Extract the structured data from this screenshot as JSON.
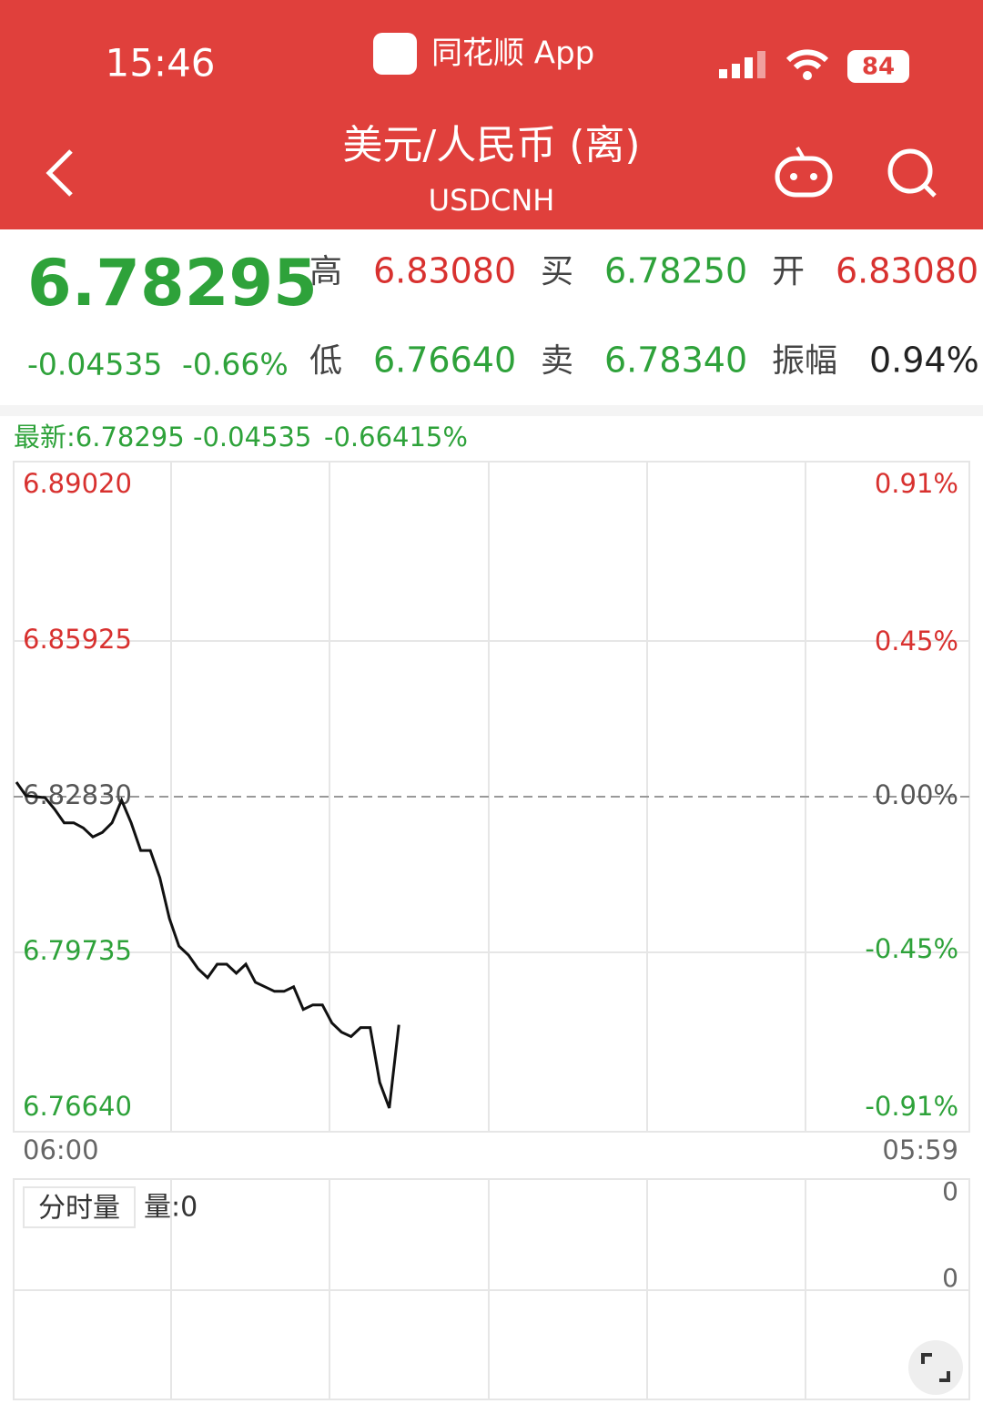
{
  "status_bar": {
    "time": "15:46",
    "app": "同花顺 App",
    "battery": "84"
  },
  "header": {
    "title": "美元/人民币 (离)",
    "code": "USDCNH"
  },
  "quote": {
    "price": "6.78295",
    "change": "-0.04535",
    "change_pct": "-0.66%",
    "fields": [
      {
        "label": "高",
        "value": "6.83080",
        "tone": "up"
      },
      {
        "label": "买",
        "value": "6.78250",
        "tone": "down"
      },
      {
        "label": "开",
        "value": "6.83080",
        "tone": "up"
      },
      {
        "label": "低",
        "value": "6.76640",
        "tone": "down"
      },
      {
        "label": "卖",
        "value": "6.78340",
        "tone": "down"
      },
      {
        "label": "振幅",
        "value": "0.94%",
        "tone": "flat"
      }
    ]
  },
  "latest": {
    "label": "最新:6.78295",
    "change": "-0.04535",
    "change_pct": "-0.66415%"
  },
  "chart_data": {
    "type": "line",
    "base": 6.8283,
    "ylim": [
      6.7664,
      6.8902
    ],
    "yticks": [
      {
        "value": 6.8902,
        "label": "6.89020"
      },
      {
        "value": 6.85925,
        "label": "6.85925"
      },
      {
        "value": 6.8283,
        "label": "6.82830"
      },
      {
        "value": 6.79735,
        "label": "6.79735"
      },
      {
        "value": 6.7664,
        "label": "6.76640"
      }
    ],
    "y2lim": [
      -0.91,
      0.91
    ],
    "y2ticks": [
      {
        "value": 0.91,
        "label": "0.91%"
      },
      {
        "value": 0.45,
        "label": "0.45%"
      },
      {
        "value": 0,
        "label": "0.00%"
      },
      {
        "value": -0.45,
        "label": "-0.45%"
      },
      {
        "value": -0.91,
        "label": "-0.91%"
      }
    ],
    "x_labels": [
      "06:00",
      "05:59"
    ],
    "series": [
      {
        "color": "#111111",
        "values": [
          6.8312,
          6.8285,
          6.8283,
          6.8281,
          6.8258,
          6.8231,
          6.8231,
          6.8221,
          6.8203,
          6.8212,
          6.8231,
          6.8276,
          6.8231,
          6.8176,
          6.8176,
          6.8122,
          6.8041,
          6.7986,
          6.7968,
          6.7941,
          6.7923,
          6.795,
          6.795,
          6.7932,
          6.795,
          6.7914,
          6.7905,
          6.7896,
          6.7896,
          6.7905,
          6.786,
          6.7869,
          6.7869,
          6.7833,
          6.7815,
          6.7806,
          6.7824,
          6.7824,
          6.7715,
          6.7664,
          6.78295,
          null,
          null,
          null,
          null,
          null,
          null,
          null,
          null,
          null,
          null,
          null,
          null,
          null,
          null,
          null,
          null,
          null,
          null,
          null,
          null,
          null,
          null,
          null,
          null,
          null,
          null,
          null,
          null,
          null,
          null,
          null,
          null,
          null,
          null,
          null,
          null,
          null,
          null,
          null,
          null,
          null,
          null,
          null,
          null,
          null,
          null,
          null,
          null,
          null,
          null,
          null,
          null,
          null,
          null,
          null,
          null,
          null,
          null,
          null
        ]
      }
    ]
  },
  "volume": {
    "tab": "分时量",
    "label": "量:0",
    "top": "0",
    "bottom": "0"
  }
}
